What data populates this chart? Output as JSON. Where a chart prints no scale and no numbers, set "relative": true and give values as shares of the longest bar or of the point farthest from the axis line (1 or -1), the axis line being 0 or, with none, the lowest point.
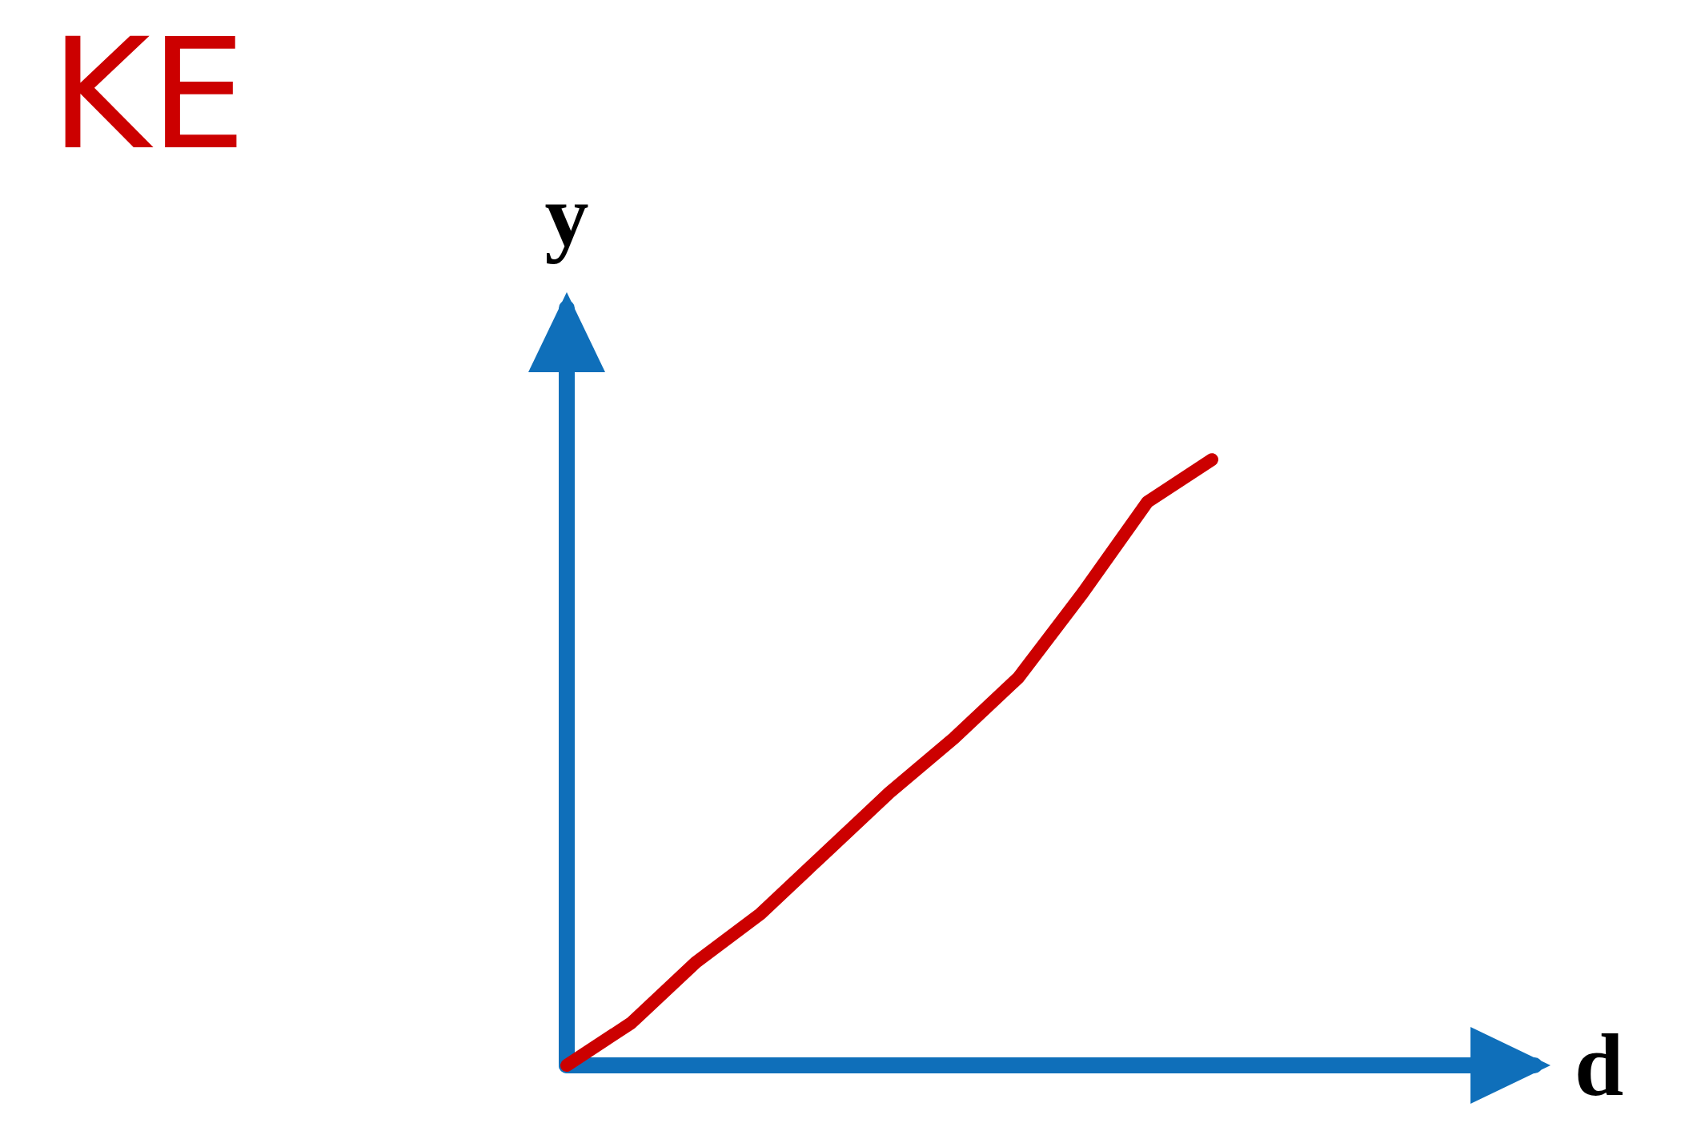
{
  "chart_data": {
    "type": "line",
    "title": "KE",
    "xlabel": "d",
    "ylabel": "y",
    "relative": true,
    "categories": [
      null,
      null,
      null,
      null,
      null,
      null,
      null,
      null,
      null,
      null,
      null,
      null,
      null,
      null,
      null,
      null
    ],
    "series": [
      {
        "color": "#cc0000",
        "values": [
          0,
          0.07,
          0.17,
          0.25,
          0.35,
          0.45,
          0.54,
          0.64,
          0.78,
          0.93,
          1,
          null,
          null,
          null,
          null,
          null
        ]
      }
    ]
  }
}
